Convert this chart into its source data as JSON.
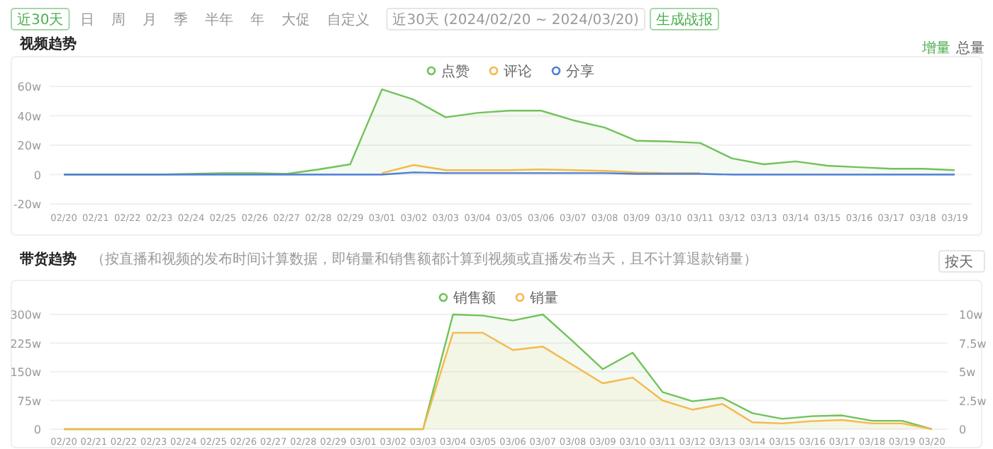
{
  "chart_data": [
    {
      "type": "line",
      "title": "视频趋势",
      "legend": "top",
      "grid": "y",
      "categories": [
        "02/20",
        "02/21",
        "02/22",
        "02/23",
        "02/24",
        "02/25",
        "02/26",
        "02/27",
        "02/28",
        "02/29",
        "03/01",
        "03/02",
        "03/03",
        "03/04",
        "03/05",
        "03/06",
        "03/07",
        "03/08",
        "03/09",
        "03/10",
        "03/11",
        "03/12",
        "03/13",
        "03/14",
        "03/15",
        "03/16",
        "03/17",
        "03/18",
        "03/19"
      ],
      "ylim": [
        -20,
        60
      ],
      "yticks": [
        {
          "value": -20,
          "label": "-20w"
        },
        0,
        {
          "value": 20,
          "label": "20w"
        },
        {
          "value": 40,
          "label": "40w"
        },
        {
          "value": 60,
          "label": "60w"
        }
      ],
      "series": [
        {
          "name": "点赞",
          "type": "area",
          "color": "#72c25b",
          "values": [
            0,
            0,
            0,
            0,
            0.5,
            1,
            1,
            0.5,
            3.5,
            7,
            58,
            51,
            39,
            42,
            43.5,
            43.5,
            37,
            32,
            23,
            22.5,
            21.5,
            11,
            7,
            9,
            6,
            5,
            4,
            4,
            3
          ]
        },
        {
          "name": "评论",
          "type": "line",
          "color": "#f5b94a",
          "values": [
            null,
            null,
            null,
            null,
            null,
            null,
            null,
            null,
            null,
            null,
            1,
            6.5,
            3,
            3,
            3,
            3.5,
            3,
            2.5,
            1.5,
            1,
            1,
            null,
            null,
            null,
            null,
            null,
            null,
            null,
            null
          ]
        },
        {
          "name": "分享",
          "type": "line",
          "color": "#4e7fd6",
          "values": [
            0,
            0,
            0,
            0,
            0,
            0,
            0,
            0,
            0,
            0,
            0,
            1.5,
            1,
            1,
            1,
            1,
            1,
            1,
            0.5,
            0.5,
            0.5,
            0,
            0,
            0,
            0,
            0,
            0,
            0,
            0
          ]
        }
      ],
      "annotations": [
        "近30天",
        "日",
        "周",
        "月",
        "季",
        "半年",
        "年",
        "大促",
        "自定义",
        "近30天 (2024/02/20 ~ 2024/03/20)",
        "生成战报",
        "增量",
        "总量"
      ]
    },
    {
      "type": "line",
      "title": "带货趋势",
      "subtitle": "（按直播和视频的发布时间计算数据，即销量和销售额都计算到视频或直播发布当天，且不计算退款销量）",
      "legend": "top",
      "grid": "y",
      "categories": [
        "02/20",
        "02/21",
        "02/22",
        "02/23",
        "02/24",
        "02/25",
        "02/26",
        "02/27",
        "02/28",
        "02/29",
        "03/01",
        "03/02",
        "03/03",
        "03/04",
        "03/05",
        "03/06",
        "03/07",
        "03/08",
        "03/09",
        "03/10",
        "03/11",
        "03/12",
        "03/13",
        "03/14",
        "03/15",
        "03/16",
        "03/17",
        "03/18",
        "03/19",
        "03/20"
      ],
      "ylim": [
        0,
        300
      ],
      "yticks": [
        0,
        {
          "value": 75,
          "label": "75w"
        },
        {
          "value": 150,
          "label": "150w"
        },
        {
          "value": 225,
          "label": "225w"
        },
        {
          "value": 300,
          "label": "300w"
        }
      ],
      "y2lim": [
        0,
        10
      ],
      "y2ticks": [
        0,
        {
          "value": 2.5,
          "label": "2.5w"
        },
        {
          "value": 5,
          "label": "5w"
        },
        {
          "value": 7.5,
          "label": "7.5w"
        },
        {
          "value": 10,
          "label": "10w"
        }
      ],
      "series": [
        {
          "name": "销售额",
          "type": "area",
          "color": "#72c25b",
          "values": [
            0,
            0,
            0,
            0,
            0,
            0,
            0,
            0,
            0,
            0,
            0,
            0,
            0,
            300,
            297,
            284,
            300,
            230,
            157,
            200,
            97,
            73,
            82,
            42,
            27,
            34,
            36,
            22,
            22,
            0
          ]
        },
        {
          "name": "销量",
          "type": "area",
          "axis": "y2",
          "color": "#f5b94a",
          "values": [
            0,
            0,
            0,
            0,
            0,
            0,
            0,
            0,
            0,
            0,
            0,
            0,
            0,
            8.4,
            8.4,
            6.9,
            7.2,
            5.6,
            4.0,
            4.5,
            2.5,
            1.7,
            2.2,
            0.6,
            0.5,
            0.7,
            0.8,
            0.5,
            0.5,
            0
          ]
        }
      ],
      "annotations": [
        "按天"
      ]
    }
  ]
}
